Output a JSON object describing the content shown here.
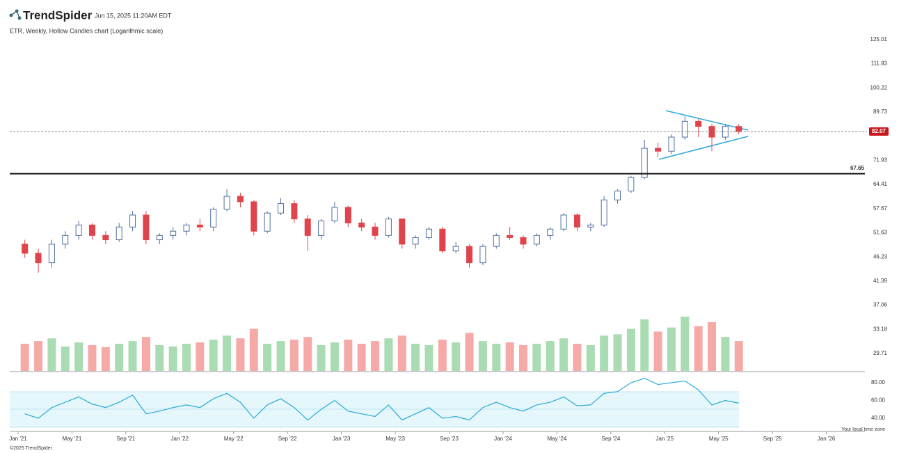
{
  "brand": "TrendSpider",
  "timestamp": "Jun 15, 2025 11:20AM EDT",
  "footer": "©2025 TrendSpider",
  "timezone_note": "Your local time zone",
  "chart_data": {
    "type": "candlestick",
    "title": "ETR, Weekly, Hollow Candles chart (Logarithmic scale)",
    "log_scale": true,
    "categories": [
      "Jan '21",
      null,
      null,
      null,
      "May '21",
      null,
      null,
      null,
      "Sep '21",
      null,
      null,
      null,
      "Jan '22",
      null,
      null,
      null,
      "May '22",
      null,
      null,
      null,
      "Sep '22",
      null,
      null,
      null,
      "Jan '23",
      null,
      null,
      null,
      "May '23",
      null,
      null,
      null,
      "Sep '23",
      null,
      null,
      null,
      "Jan '24",
      null,
      null,
      null,
      "May '24",
      null,
      null,
      null,
      "Sep '24",
      null,
      null,
      null,
      "Jan '25",
      null,
      null,
      null,
      "May '25",
      null,
      null,
      null,
      "Sep '25",
      null,
      null,
      null,
      "Jan '26"
    ],
    "open": [
      49,
      47,
      45,
      49,
      51,
      53.5,
      51,
      50,
      53,
      56,
      50,
      51,
      52,
      53.5,
      53,
      57.5,
      61,
      59.5,
      52,
      56.5,
      59,
      55,
      51,
      54.5,
      58,
      54,
      53,
      51,
      55,
      49,
      50.5,
      52.5,
      47.5,
      48.5,
      45,
      48.5,
      51,
      50.5,
      49,
      51,
      52.5,
      56,
      53,
      53.5,
      60,
      62.5,
      66.5,
      76,
      75,
      80,
      86,
      84,
      80,
      84,
      null,
      null,
      null,
      null,
      null,
      null,
      null
    ],
    "high": [
      50,
      48,
      50,
      52,
      54.5,
      54,
      52,
      54,
      57,
      57,
      51.5,
      53,
      54,
      55,
      58,
      63,
      62,
      60,
      57,
      60.5,
      60,
      56,
      55,
      59.5,
      58.5,
      55,
      54,
      55.5,
      55,
      51,
      53,
      53,
      49.5,
      49,
      49,
      51.5,
      53,
      51,
      51.5,
      53,
      56.5,
      56.5,
      54,
      61,
      63,
      67,
      79,
      78,
      81,
      88,
      87,
      85,
      85,
      85,
      null,
      null,
      null,
      null,
      null,
      null,
      null
    ],
    "low": [
      46,
      43,
      44,
      48,
      50,
      50,
      49,
      49.5,
      52,
      49,
      49,
      50,
      51,
      52,
      52,
      57,
      58,
      51,
      51.5,
      56,
      54,
      47.5,
      50,
      54,
      53,
      52,
      50,
      50.5,
      48,
      48,
      50,
      47,
      47,
      44,
      44.5,
      48,
      50,
      48,
      48.5,
      50,
      52,
      52,
      52,
      53,
      59,
      62,
      66,
      73,
      74,
      79,
      80,
      75,
      79,
      81,
      null,
      null,
      null,
      null,
      null,
      null,
      null
    ],
    "close": [
      47,
      45,
      49,
      51,
      53.5,
      51,
      50,
      53,
      56,
      50,
      51,
      52,
      53.5,
      53,
      57.5,
      61,
      59.5,
      52,
      56.5,
      59,
      55,
      51,
      54.5,
      58,
      54,
      53,
      51,
      55,
      49,
      50.5,
      52.5,
      47.5,
      48.5,
      45,
      48.5,
      51,
      50.5,
      49,
      51,
      52.5,
      56,
      53,
      53.5,
      60,
      62.5,
      66.5,
      76,
      75,
      80,
      86,
      84,
      80,
      84,
      82.07,
      null,
      null,
      null,
      null,
      null,
      null,
      null
    ],
    "volume": [
      40,
      44,
      48,
      36,
      42,
      38,
      35,
      40,
      44,
      50,
      38,
      36,
      40,
      42,
      46,
      52,
      48,
      62,
      40,
      44,
      46,
      50,
      38,
      42,
      46,
      40,
      44,
      48,
      52,
      40,
      38,
      46,
      42,
      56,
      44,
      40,
      42,
      38,
      40,
      44,
      48,
      40,
      38,
      52,
      54,
      62,
      76,
      58,
      64,
      80,
      66,
      72,
      50,
      44,
      null,
      null,
      null,
      null,
      null,
      null,
      null
    ],
    "rsi": [
      45,
      40,
      52,
      58,
      64,
      56,
      52,
      58,
      66,
      45,
      48,
      52,
      55,
      52,
      62,
      68,
      58,
      40,
      55,
      62,
      52,
      38,
      50,
      60,
      48,
      45,
      42,
      55,
      38,
      45,
      52,
      40,
      42,
      38,
      52,
      58,
      52,
      48,
      55,
      58,
      64,
      54,
      55,
      68,
      70,
      80,
      85,
      78,
      80,
      82,
      72,
      55,
      60,
      57,
      null,
      null,
      null,
      null,
      null,
      null,
      null
    ],
    "ylim": [
      27.43,
      127.8
    ],
    "yticks": [
      29.71,
      33.18,
      37.06,
      41.39,
      46.23,
      51.63,
      57.67,
      64.41,
      71.93,
      89.73,
      100.22,
      111.93,
      125.01
    ],
    "level": 67.65,
    "last_price": 82.07,
    "rsi_ylim": [
      26.7,
      90.2
    ],
    "rsi_yticks": [
      {
        "value": 40,
        "label": "40.00"
      },
      {
        "value": 60,
        "label": "60.00"
      },
      {
        "value": 80,
        "label": "80.00"
      }
    ],
    "up_color": "#4f6f9f",
    "down_color": "#e0434b",
    "volume_up_color": "#a9dcb2",
    "volume_down_color": "#f5aaa8",
    "rsi_color": "#29a9d8"
  }
}
